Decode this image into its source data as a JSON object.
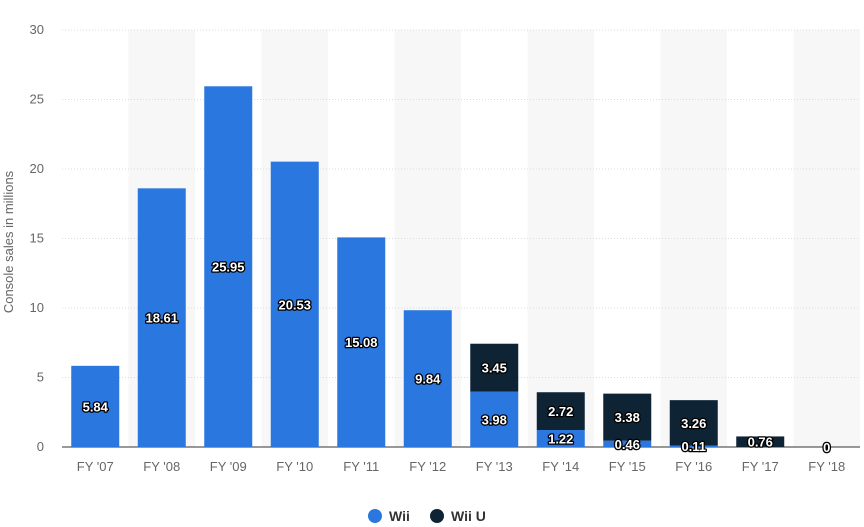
{
  "chart_data": {
    "type": "bar",
    "stacked": true,
    "categories": [
      "FY '07",
      "FY '08",
      "FY '09",
      "FY '10",
      "FY '11",
      "FY '12",
      "FY '13",
      "FY '14",
      "FY '15",
      "FY '16",
      "FY '17",
      "FY '18"
    ],
    "series": [
      {
        "name": "Wii",
        "color": "#2b77e0",
        "values": [
          5.84,
          18.61,
          25.95,
          20.53,
          15.08,
          9.84,
          3.98,
          1.22,
          0.46,
          0.11,
          null,
          null
        ],
        "labels": [
          "5.84",
          "18.61",
          "25.95",
          "20.53",
          "15.08",
          "9.84",
          "3.98",
          "1.22",
          "0.46",
          "0.11",
          "",
          ""
        ]
      },
      {
        "name": "Wii U",
        "color": "#0e2333",
        "values": [
          null,
          null,
          null,
          null,
          null,
          null,
          3.45,
          2.72,
          3.38,
          3.26,
          0.76,
          0
        ],
        "labels": [
          "",
          "",
          "",
          "",
          "",
          "",
          "3.45",
          "2.72",
          "3.38",
          "3.26",
          "0.76",
          "0"
        ]
      }
    ],
    "ylabel": "Console sales in millions",
    "yticks": [
      0,
      5,
      10,
      15,
      20,
      25,
      30
    ],
    "ylim": [
      0,
      30
    ],
    "grid": true,
    "legend_position": "bottom-center"
  }
}
